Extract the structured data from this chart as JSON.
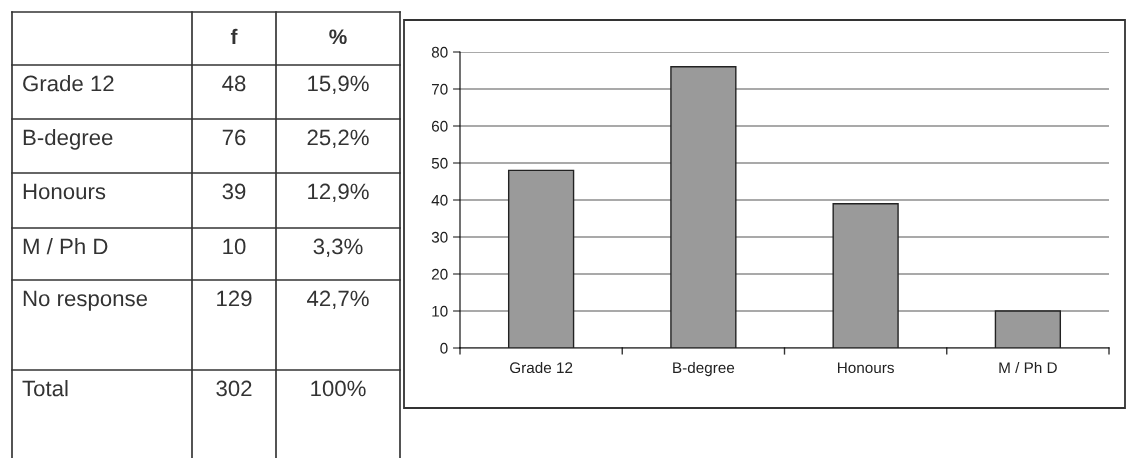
{
  "chart_data": [
    {
      "type": "other",
      "categories": [
        "f",
        "%"
      ],
      "y_categories": [
        "Grade 12",
        "B-degree",
        "Honours",
        "M / Ph D",
        "No response",
        "Total"
      ],
      "cell_labels": [
        [
          "48",
          "15,9%"
        ],
        [
          "76",
          "25,2%"
        ],
        [
          "39",
          "12,9%"
        ],
        [
          "10",
          "3,3%"
        ],
        [
          "129",
          "42,7%"
        ],
        [
          "302",
          "100%"
        ]
      ]
    },
    {
      "type": "bar",
      "categories": [
        "Grade 12",
        "B-degree",
        "Honours",
        "M / Ph D"
      ],
      "values": [
        48,
        76,
        39,
        10
      ],
      "color": "#9a9a9a",
      "ylim": [
        0,
        80
      ],
      "yticks": [
        0,
        10,
        20,
        30,
        40,
        50,
        60,
        70,
        80
      ],
      "grid": "y"
    }
  ]
}
